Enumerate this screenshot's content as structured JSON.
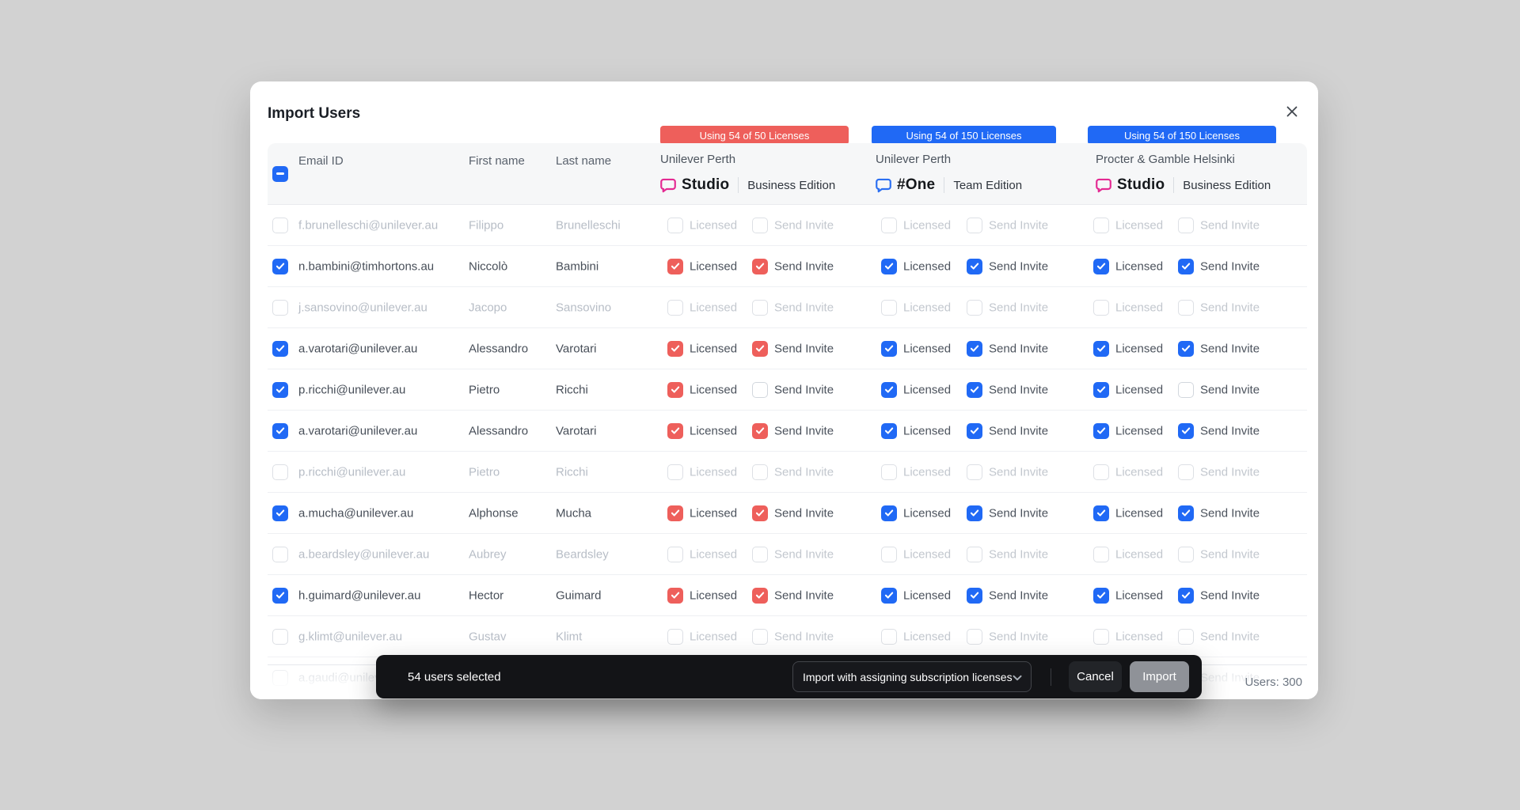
{
  "modal": {
    "title": "Import Users",
    "users_total": "Users: 300"
  },
  "table": {
    "columns": {
      "email": "Email ID",
      "first": "First name",
      "last": "Last name"
    },
    "labels": {
      "licensed": "Licensed",
      "send_invite": "Send Invite"
    }
  },
  "colors": {
    "select_blue": "#2069f5"
  },
  "groups": [
    {
      "badge_text": "Using 54 of 50 Licenses",
      "badge_color": "#ee5f5b",
      "org": "Unilever Perth",
      "product": "Studio",
      "edition": "Business Edition",
      "logo_color": "#e42a92",
      "check_color": "#ee5f5b"
    },
    {
      "badge_text": "Using 54 of 150 Licenses",
      "badge_color": "#2069f5",
      "org": "Unilever Perth",
      "product": "#One",
      "edition": "Team Edition",
      "logo_color": "#2b6ff2",
      "check_color": "#2069f5"
    },
    {
      "badge_text": "Using 54 of 150 Licenses",
      "badge_color": "#2069f5",
      "org": "Procter & Gamble Helsinki",
      "product": "Studio",
      "edition": "Business Edition",
      "logo_color": "#e42a92",
      "check_color": "#2069f5"
    }
  ],
  "rows": [
    {
      "email": "f.brunelleschi@unilever.au",
      "first": "Filippo",
      "last": "Brunelleschi",
      "selected": false,
      "cells": [
        [
          false,
          false
        ],
        [
          false,
          false
        ],
        [
          false,
          false
        ]
      ]
    },
    {
      "email": "n.bambini@timhortons.au",
      "first": "Niccolò",
      "last": "Bambini",
      "selected": true,
      "cells": [
        [
          true,
          true
        ],
        [
          true,
          true
        ],
        [
          true,
          true
        ]
      ]
    },
    {
      "email": "j.sansovino@unilever.au",
      "first": "Jacopo",
      "last": "Sansovino",
      "selected": false,
      "cells": [
        [
          false,
          false
        ],
        [
          false,
          false
        ],
        [
          false,
          false
        ]
      ]
    },
    {
      "email": "a.varotari@unilever.au",
      "first": "Alessandro",
      "last": "Varotari",
      "selected": true,
      "cells": [
        [
          true,
          true
        ],
        [
          true,
          true
        ],
        [
          true,
          true
        ]
      ]
    },
    {
      "email": "p.ricchi@unilever.au",
      "first": "Pietro",
      "last": "Ricchi",
      "selected": true,
      "cells": [
        [
          true,
          false
        ],
        [
          true,
          true
        ],
        [
          true,
          false
        ]
      ]
    },
    {
      "email": "a.varotari@unilever.au",
      "first": "Alessandro",
      "last": "Varotari",
      "selected": true,
      "cells": [
        [
          true,
          true
        ],
        [
          true,
          true
        ],
        [
          true,
          true
        ]
      ]
    },
    {
      "email": "p.ricchi@unilever.au",
      "first": "Pietro",
      "last": "Ricchi",
      "selected": false,
      "cells": [
        [
          false,
          false
        ],
        [
          false,
          false
        ],
        [
          false,
          false
        ]
      ]
    },
    {
      "email": "a.mucha@unilever.au",
      "first": "Alphonse",
      "last": "Mucha",
      "selected": true,
      "cells": [
        [
          true,
          true
        ],
        [
          true,
          true
        ],
        [
          true,
          true
        ]
      ]
    },
    {
      "email": "a.beardsley@unilever.au",
      "first": "Aubrey",
      "last": "Beardsley",
      "selected": false,
      "cells": [
        [
          false,
          false
        ],
        [
          false,
          false
        ],
        [
          false,
          false
        ]
      ]
    },
    {
      "email": "h.guimard@unilever.au",
      "first": "Hector",
      "last": "Guimard",
      "selected": true,
      "cells": [
        [
          true,
          true
        ],
        [
          true,
          true
        ],
        [
          true,
          true
        ]
      ]
    },
    {
      "email": "g.klimt@unilever.au",
      "first": "Gustav",
      "last": "Klimt",
      "selected": false,
      "cells": [
        [
          false,
          false
        ],
        [
          false,
          false
        ],
        [
          false,
          false
        ]
      ]
    },
    {
      "email": "a.gaudi@unilever.au",
      "first": "",
      "last": "",
      "selected": false,
      "cells": [
        [
          false,
          false
        ],
        [
          false,
          false
        ],
        [
          false,
          false
        ]
      ]
    }
  ],
  "action_bar": {
    "selected_text": "54 users selected",
    "dropdown_value": "Import with assigning subscription licenses",
    "cancel_label": "Cancel",
    "import_label": "Import"
  }
}
